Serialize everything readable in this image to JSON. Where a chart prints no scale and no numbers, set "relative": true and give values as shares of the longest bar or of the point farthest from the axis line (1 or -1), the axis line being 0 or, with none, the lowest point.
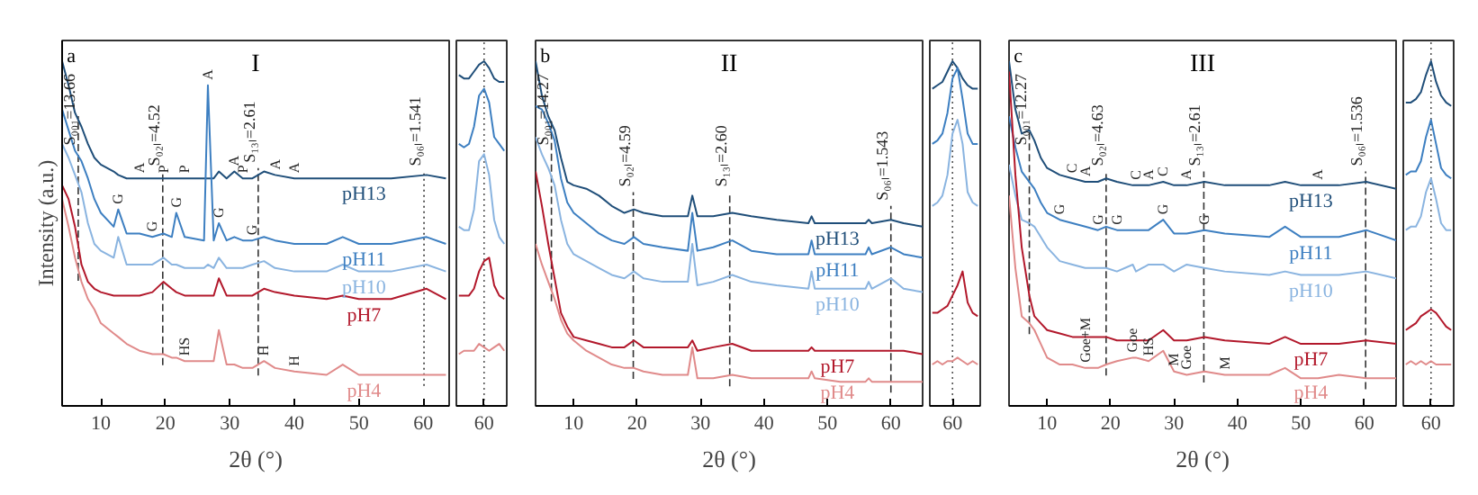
{
  "chart_data": [
    {
      "type": "line",
      "title": "I",
      "xlabel": "2θ (°)",
      "ylabel": "Intensity (a.u.)",
      "relative": true,
      "xlim": [
        4,
        64
      ],
      "xticks": [
        10,
        20,
        30,
        40,
        50,
        60
      ],
      "grid": false,
      "legend": false,
      "line_style": "solid",
      "annotations": [
        "a",
        {
          "text": "S₀₀₁=13.66",
          "x": 6.5,
          "y": 0.74
        },
        {
          "text": "S₀₂ₗ=4.52",
          "x": 19.6,
          "y": 0.68
        },
        {
          "text": "S₁₃ₗ=2.61",
          "x": 34.4,
          "y": 0.69
        },
        {
          "text": "S₀₆ₗ=1.541",
          "x": 60.1,
          "y": 0.68
        },
        {
          "text": "A",
          "x": 16,
          "y": 0.66
        },
        {
          "text": "P",
          "x": 19.7,
          "y": 0.66
        },
        {
          "text": "P",
          "x": 23,
          "y": 0.66
        },
        {
          "text": "A",
          "x": 26.6,
          "y": 0.93
        },
        {
          "text": "A",
          "x": 30.7,
          "y": 0.68
        },
        {
          "text": "P",
          "x": 32,
          "y": 0.66
        },
        {
          "text": "A",
          "x": 37,
          "y": 0.67
        },
        {
          "text": "A",
          "x": 40,
          "y": 0.66
        },
        {
          "text": "G",
          "x": 12.7,
          "y": 0.57
        },
        {
          "text": "G",
          "x": 18,
          "y": 0.49
        },
        {
          "text": "G",
          "x": 21.7,
          "y": 0.56
        },
        {
          "text": "G",
          "x": 28.3,
          "y": 0.53
        },
        {
          "text": "G",
          "x": 33.5,
          "y": 0.48
        },
        {
          "text": "HS",
          "x": 23,
          "y": 0.13
        },
        {
          "text": "H",
          "x": 35.3,
          "y": 0.13
        },
        {
          "text": "H",
          "x": 40,
          "y": 0.1
        }
      ],
      "ref_lines": [
        {
          "axis": "x",
          "value": 6.5,
          "line_style": "dashed"
        },
        {
          "axis": "x",
          "value": 19.6,
          "line_style": "dashed"
        },
        {
          "axis": "x",
          "value": 34.4,
          "line_style": "dashed"
        },
        {
          "axis": "x",
          "value": 60.1,
          "line_style": "dotted"
        }
      ],
      "x": [
        4,
        5,
        6,
        7,
        8,
        9,
        10,
        12,
        12.7,
        14,
        16,
        18,
        19.7,
        21,
        21.7,
        23,
        26,
        26.6,
        27.5,
        28.3,
        29.5,
        30.7,
        32,
        33.5,
        35.3,
        37,
        40,
        45,
        47.5,
        50,
        55,
        60.5,
        63.5
      ],
      "series": [
        {
          "name": "pH13",
          "color": "#1f4e79",
          "values": [
            1.0,
            0.93,
            0.85,
            0.81,
            0.76,
            0.72,
            0.7,
            0.68,
            0.67,
            0.66,
            0.66,
            0.66,
            0.66,
            0.66,
            0.66,
            0.66,
            0.66,
            0.66,
            0.66,
            0.68,
            0.66,
            0.68,
            0.66,
            0.66,
            0.68,
            0.67,
            0.66,
            0.66,
            0.66,
            0.66,
            0.66,
            0.67,
            0.66
          ]
        },
        {
          "name": "pH11",
          "color": "#3d7fc1",
          "values": [
            0.86,
            0.8,
            0.74,
            0.71,
            0.66,
            0.6,
            0.56,
            0.52,
            0.57,
            0.5,
            0.5,
            0.49,
            0.5,
            0.49,
            0.56,
            0.49,
            0.48,
            0.93,
            0.48,
            0.53,
            0.48,
            0.49,
            0.48,
            0.48,
            0.49,
            0.48,
            0.47,
            0.47,
            0.49,
            0.47,
            0.47,
            0.49,
            0.47
          ]
        },
        {
          "name": "pH10",
          "color": "#8ab4e0",
          "values": [
            0.76,
            0.72,
            0.67,
            0.62,
            0.53,
            0.47,
            0.45,
            0.43,
            0.49,
            0.41,
            0.41,
            0.41,
            0.43,
            0.41,
            0.41,
            0.4,
            0.4,
            0.41,
            0.4,
            0.43,
            0.4,
            0.4,
            0.4,
            0.41,
            0.42,
            0.4,
            0.39,
            0.39,
            0.41,
            0.39,
            0.39,
            0.41,
            0.39
          ]
        },
        {
          "name": "pH7",
          "color": "#b2182b",
          "values": [
            0.64,
            0.6,
            0.52,
            0.41,
            0.36,
            0.34,
            0.33,
            0.32,
            0.32,
            0.32,
            0.32,
            0.33,
            0.36,
            0.34,
            0.33,
            0.32,
            0.32,
            0.32,
            0.32,
            0.37,
            0.32,
            0.32,
            0.32,
            0.32,
            0.34,
            0.33,
            0.32,
            0.31,
            0.32,
            0.31,
            0.31,
            0.34,
            0.31
          ]
        },
        {
          "name": "pH4",
          "color": "#e08a8a",
          "values": [
            0.6,
            0.52,
            0.43,
            0.36,
            0.31,
            0.28,
            0.24,
            0.21,
            0.2,
            0.18,
            0.16,
            0.15,
            0.15,
            0.14,
            0.14,
            0.13,
            0.13,
            0.13,
            0.13,
            0.22,
            0.12,
            0.12,
            0.11,
            0.11,
            0.13,
            0.11,
            0.1,
            0.09,
            0.12,
            0.09,
            0.09,
            0.09,
            0.09
          ]
        }
      ]
    },
    {
      "type": "line",
      "relative": true,
      "grid": false,
      "legend": false,
      "line_style": "solid",
      "annotations": [
        "60"
      ],
      "categories": [
        null,
        null,
        null,
        null,
        null,
        null,
        null,
        null,
        null,
        null
      ],
      "series": [
        {
          "color": "#1f4e79",
          "values": [
            0.96,
            0.95,
            0.95,
            0.97,
            0.99,
            1.0,
            0.98,
            0.95,
            0.94,
            0.94
          ]
        },
        {
          "color": "#3d7fc1",
          "values": [
            0.76,
            0.75,
            0.76,
            0.81,
            0.9,
            0.92,
            0.88,
            0.78,
            0.76,
            0.74
          ]
        },
        {
          "color": "#8ab4e0",
          "values": [
            0.52,
            0.51,
            0.51,
            0.57,
            0.71,
            0.73,
            0.67,
            0.54,
            0.49,
            0.47
          ]
        },
        {
          "color": "#b2182b",
          "values": [
            0.32,
            0.32,
            0.32,
            0.34,
            0.39,
            0.42,
            0.43,
            0.35,
            0.32,
            0.31
          ]
        },
        {
          "color": "#e08a8a",
          "values": [
            0.15,
            0.16,
            0.16,
            0.16,
            0.18,
            0.17,
            0.16,
            0.17,
            0.18,
            0.16
          ]
        }
      ]
    },
    {
      "type": "line",
      "title": "II",
      "xlabel": "2θ (°)",
      "relative": true,
      "xlim": [
        4,
        65
      ],
      "xticks": [
        10,
        20,
        30,
        40,
        50,
        60
      ],
      "grid": false,
      "legend": false,
      "line_style": "solid",
      "annotations": [
        "b",
        {
          "text": "S₀₀₁=14.27",
          "x": 6.5,
          "y": 0.74
        },
        {
          "text": "S₀₂ₗ=4.59",
          "x": 19.4,
          "y": 0.62
        },
        {
          "text": "S₁₃ₗ=2.60",
          "x": 34.6,
          "y": 0.62
        },
        {
          "text": "S₀₆ₗ=1.543",
          "x": 60,
          "y": 0.58
        }
      ],
      "ref_lines": [
        {
          "axis": "x",
          "value": 6.5,
          "line_style": "dashed"
        },
        {
          "axis": "x",
          "value": 19.4,
          "line_style": "dashed"
        },
        {
          "axis": "x",
          "value": 34.6,
          "line_style": "dashed"
        },
        {
          "axis": "x",
          "value": 60,
          "line_style": "dashed"
        }
      ],
      "x": [
        4,
        5,
        6,
        7,
        8,
        9,
        10,
        12,
        14,
        16,
        18,
        19.5,
        21,
        24,
        28,
        28.7,
        29.5,
        32,
        35,
        38,
        42,
        47,
        47.5,
        48,
        52,
        56,
        56.5,
        57,
        60,
        62,
        65
      ],
      "series": [
        {
          "name": "pH13",
          "color": "#1f4e79",
          "values": [
            1.0,
            0.9,
            0.84,
            0.8,
            0.72,
            0.65,
            0.64,
            0.63,
            0.61,
            0.58,
            0.56,
            0.57,
            0.56,
            0.55,
            0.55,
            0.61,
            0.55,
            0.55,
            0.56,
            0.55,
            0.54,
            0.53,
            0.55,
            0.53,
            0.53,
            0.53,
            0.54,
            0.53,
            0.54,
            0.53,
            0.52
          ]
        },
        {
          "name": "pH11",
          "color": "#3d7fc1",
          "values": [
            0.87,
            0.86,
            0.82,
            0.77,
            0.66,
            0.59,
            0.56,
            0.53,
            0.5,
            0.48,
            0.47,
            0.49,
            0.47,
            0.46,
            0.45,
            0.56,
            0.45,
            0.46,
            0.48,
            0.45,
            0.44,
            0.44,
            0.48,
            0.44,
            0.44,
            0.44,
            0.46,
            0.44,
            0.46,
            0.44,
            0.43
          ]
        },
        {
          "name": "pH10",
          "color": "#8ab4e0",
          "values": [
            0.78,
            0.73,
            0.69,
            0.64,
            0.54,
            0.47,
            0.44,
            0.42,
            0.4,
            0.38,
            0.37,
            0.39,
            0.37,
            0.36,
            0.36,
            0.47,
            0.35,
            0.36,
            0.38,
            0.36,
            0.35,
            0.34,
            0.39,
            0.34,
            0.34,
            0.34,
            0.36,
            0.34,
            0.37,
            0.34,
            0.33
          ]
        },
        {
          "name": "pH7",
          "color": "#b2182b",
          "values": [
            0.68,
            0.58,
            0.47,
            0.37,
            0.27,
            0.23,
            0.2,
            0.19,
            0.18,
            0.17,
            0.17,
            0.19,
            0.17,
            0.17,
            0.17,
            0.19,
            0.16,
            0.17,
            0.18,
            0.16,
            0.16,
            0.16,
            0.17,
            0.16,
            0.16,
            0.16,
            0.16,
            0.16,
            0.16,
            0.16,
            0.15
          ]
        },
        {
          "name": "pH4",
          "color": "#e08a8a",
          "values": [
            0.47,
            0.41,
            0.36,
            0.31,
            0.25,
            0.21,
            0.19,
            0.16,
            0.14,
            0.12,
            0.11,
            0.11,
            0.1,
            0.09,
            0.09,
            0.17,
            0.08,
            0.08,
            0.09,
            0.08,
            0.08,
            0.08,
            0.1,
            0.08,
            0.07,
            0.07,
            0.08,
            0.07,
            0.07,
            0.07,
            0.07
          ]
        }
      ]
    },
    {
      "type": "line",
      "relative": true,
      "grid": false,
      "legend": false,
      "line_style": "solid",
      "annotations": [
        "60"
      ],
      "categories": [
        null,
        null,
        null,
        null,
        null,
        null,
        null,
        null,
        null,
        null
      ],
      "series": [
        {
          "color": "#1f4e79",
          "values": [
            0.92,
            0.93,
            0.94,
            0.97,
            1.0,
            0.98,
            0.95,
            0.93,
            0.92,
            0.92
          ]
        },
        {
          "color": "#3d7fc1",
          "values": [
            0.76,
            0.77,
            0.79,
            0.85,
            0.95,
            0.98,
            0.89,
            0.79,
            0.76,
            0.76
          ]
        },
        {
          "color": "#8ab4e0",
          "values": [
            0.58,
            0.59,
            0.61,
            0.67,
            0.79,
            0.83,
            0.76,
            0.62,
            0.59,
            0.58
          ]
        },
        {
          "color": "#b2182b",
          "values": [
            0.27,
            0.27,
            0.28,
            0.29,
            0.32,
            0.35,
            0.39,
            0.3,
            0.27,
            0.26
          ]
        },
        {
          "color": "#e08a8a",
          "values": [
            0.12,
            0.13,
            0.12,
            0.13,
            0.13,
            0.14,
            0.13,
            0.12,
            0.13,
            0.12
          ]
        }
      ]
    },
    {
      "type": "line",
      "title": "III",
      "xlabel": "2θ (°)",
      "relative": true,
      "xlim": [
        4,
        65
      ],
      "xticks": [
        10,
        20,
        30,
        40,
        50,
        60
      ],
      "grid": false,
      "legend": false,
      "line_style": "solid",
      "annotations": [
        "c",
        {
          "text": "S₀₀₁=12.27",
          "x": 7.2,
          "y": 0.74
        },
        {
          "text": "S₀₂ₗ=4.63",
          "x": 19.3,
          "y": 0.68
        },
        {
          "text": "S₁₃ₗ=2.61",
          "x": 34.7,
          "y": 0.68
        },
        {
          "text": "S₀₆ₗ=1.536",
          "x": 60.2,
          "y": 0.68
        },
        {
          "text": "C",
          "x": 14,
          "y": 0.66
        },
        {
          "text": "A",
          "x": 16,
          "y": 0.65
        },
        {
          "text": "C",
          "x": 24,
          "y": 0.64
        },
        {
          "text": "A",
          "x": 26,
          "y": 0.64
        },
        {
          "text": "C",
          "x": 28.3,
          "y": 0.65
        },
        {
          "text": "A",
          "x": 32,
          "y": 0.64
        },
        {
          "text": "A",
          "x": 52.7,
          "y": 0.64
        },
        {
          "text": "G",
          "x": 12,
          "y": 0.54
        },
        {
          "text": "G",
          "x": 18,
          "y": 0.51
        },
        {
          "text": "G",
          "x": 21,
          "y": 0.51
        },
        {
          "text": "G",
          "x": 28.3,
          "y": 0.54
        },
        {
          "text": "G",
          "x": 34.8,
          "y": 0.51
        },
        {
          "text": "Goe+M",
          "x": 16,
          "y": 0.11
        },
        {
          "text": "Goe",
          "x": 23.5,
          "y": 0.14
        },
        {
          "text": "HS",
          "x": 26,
          "y": 0.13
        },
        {
          "text": "M",
          "x": 30,
          "y": 0.1
        },
        {
          "text": "Goe",
          "x": 32,
          "y": 0.09
        },
        {
          "text": "M",
          "x": 38,
          "y": 0.09
        }
      ],
      "ref_lines": [
        {
          "axis": "x",
          "value": 7.2,
          "line_style": "dashed"
        },
        {
          "axis": "x",
          "value": 19.3,
          "line_style": "dashed"
        },
        {
          "axis": "x",
          "value": 34.7,
          "line_style": "dashed"
        },
        {
          "axis": "x",
          "value": 60.2,
          "line_style": "dashed"
        }
      ],
      "x": [
        4,
        5,
        6,
        7.2,
        8,
        9,
        10,
        12,
        14,
        16,
        18,
        19.3,
        21,
        23.5,
        24,
        26,
        28.3,
        30,
        32,
        34.8,
        38,
        45,
        47.5,
        50,
        52.7,
        56,
        60.3,
        65
      ],
      "series": [
        {
          "name": "pH13",
          "color": "#1f4e79",
          "values": [
            1.0,
            0.86,
            0.79,
            0.8,
            0.77,
            0.72,
            0.69,
            0.67,
            0.66,
            0.65,
            0.65,
            0.66,
            0.65,
            0.64,
            0.64,
            0.64,
            0.65,
            0.64,
            0.64,
            0.65,
            0.64,
            0.64,
            0.65,
            0.64,
            0.64,
            0.64,
            0.65,
            0.63
          ]
        },
        {
          "name": "pH11",
          "color": "#3d7fc1",
          "values": [
            0.84,
            0.75,
            0.68,
            0.65,
            0.63,
            0.59,
            0.56,
            0.54,
            0.53,
            0.52,
            0.51,
            0.52,
            0.51,
            0.51,
            0.51,
            0.51,
            0.54,
            0.5,
            0.5,
            0.51,
            0.5,
            0.49,
            0.52,
            0.49,
            0.49,
            0.49,
            0.51,
            0.48
          ]
        },
        {
          "name": "pH10",
          "color": "#8ab4e0",
          "values": [
            0.7,
            0.61,
            0.54,
            0.53,
            0.52,
            0.49,
            0.46,
            0.42,
            0.41,
            0.4,
            0.4,
            0.4,
            0.39,
            0.41,
            0.39,
            0.41,
            0.41,
            0.39,
            0.41,
            0.4,
            0.39,
            0.38,
            0.39,
            0.38,
            0.38,
            0.38,
            0.39,
            0.37
          ]
        },
        {
          "name": "pH7",
          "color": "#b2182b",
          "values": [
            0.97,
            0.67,
            0.46,
            0.32,
            0.26,
            0.24,
            0.22,
            0.21,
            0.2,
            0.2,
            0.2,
            0.2,
            0.19,
            0.19,
            0.19,
            0.19,
            0.22,
            0.19,
            0.19,
            0.2,
            0.19,
            0.18,
            0.2,
            0.18,
            0.18,
            0.18,
            0.19,
            0.18
          ]
        },
        {
          "name": "pH4",
          "color": "#e08a8a",
          "values": [
            0.61,
            0.4,
            0.26,
            0.24,
            0.22,
            0.18,
            0.14,
            0.12,
            0.12,
            0.11,
            0.11,
            0.12,
            0.13,
            0.14,
            0.14,
            0.13,
            0.16,
            0.1,
            0.09,
            0.1,
            0.09,
            0.09,
            0.11,
            0.08,
            0.08,
            0.09,
            0.08,
            0.08
          ]
        }
      ]
    },
    {
      "type": "line",
      "relative": true,
      "grid": false,
      "legend": false,
      "line_style": "solid",
      "annotations": [
        "60"
      ],
      "categories": [
        null,
        null,
        null,
        null,
        null,
        null,
        null,
        null,
        null,
        null
      ],
      "series": [
        {
          "color": "#1f4e79",
          "values": [
            0.88,
            0.88,
            0.89,
            0.91,
            0.96,
            1.0,
            0.94,
            0.9,
            0.88,
            0.87
          ]
        },
        {
          "color": "#3d7fc1",
          "values": [
            0.67,
            0.68,
            0.68,
            0.71,
            0.78,
            0.83,
            0.76,
            0.69,
            0.67,
            0.66
          ]
        },
        {
          "color": "#8ab4e0",
          "values": [
            0.51,
            0.52,
            0.52,
            0.55,
            0.62,
            0.66,
            0.6,
            0.53,
            0.51,
            0.51
          ]
        },
        {
          "color": "#b2182b",
          "values": [
            0.22,
            0.23,
            0.24,
            0.26,
            0.27,
            0.28,
            0.27,
            0.25,
            0.23,
            0.22
          ]
        },
        {
          "color": "#e08a8a",
          "values": [
            0.12,
            0.13,
            0.12,
            0.13,
            0.12,
            0.13,
            0.12,
            0.12,
            0.12,
            0.12
          ]
        }
      ]
    }
  ]
}
